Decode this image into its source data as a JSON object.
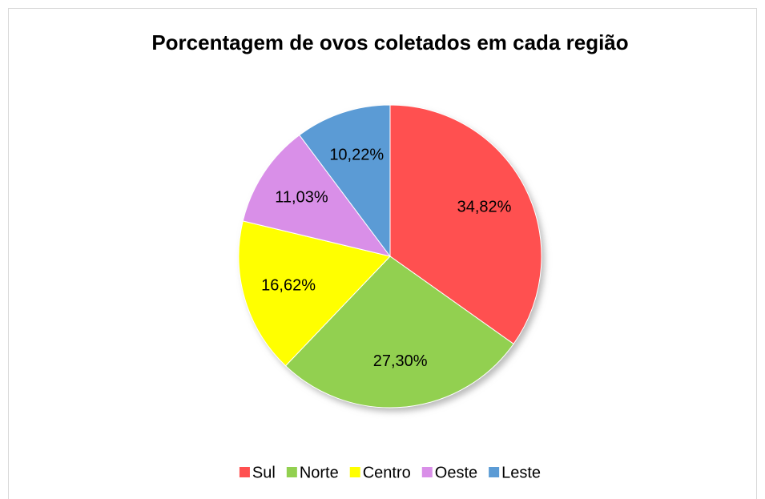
{
  "chart_data": {
    "type": "pie",
    "title": "Porcentagem de ovos coletados em cada região",
    "categories": [
      "Sul",
      "Norte",
      "Centro",
      "Oeste",
      "Leste"
    ],
    "values": [
      34.82,
      27.3,
      16.62,
      11.03,
      10.22
    ],
    "value_labels": [
      "34,82%",
      "27,30%",
      "16,62%",
      "11,03%",
      "10,22%"
    ],
    "colors": [
      "#ff5050",
      "#92d050",
      "#ffff00",
      "#d98fe8",
      "#5b9bd5"
    ],
    "legend": "bottom"
  }
}
